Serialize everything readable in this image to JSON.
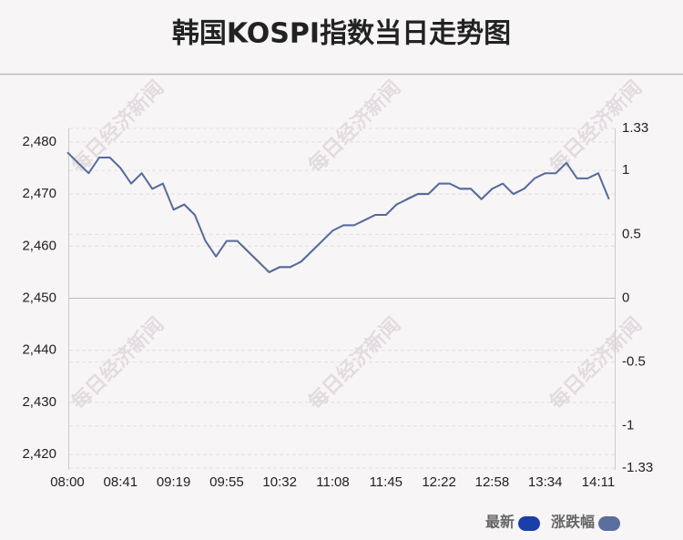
{
  "chart_data": {
    "type": "line",
    "title": "韩国KOSPI指数当日走势图",
    "watermark": "每日经济新闻",
    "x": [
      "08:00",
      null,
      null,
      null,
      null,
      "08:41",
      null,
      null,
      null,
      null,
      "09:19",
      null,
      null,
      null,
      null,
      "09:55",
      null,
      null,
      null,
      null,
      "10:32",
      null,
      null,
      null,
      null,
      "11:08",
      null,
      null,
      null,
      null,
      "11:45",
      null,
      null,
      null,
      null,
      "12:22",
      null,
      null,
      null,
      null,
      "12:58",
      null,
      null,
      null,
      null,
      "13:34",
      null,
      null,
      null,
      null,
      "14:11",
      null
    ],
    "series": [
      {
        "name": "最新",
        "color": "#1a3fa8",
        "line_color": "#4f6596",
        "values": [
          2478,
          2476,
          2474,
          2477,
          2477,
          2475,
          2472,
          2474,
          2471,
          2472,
          2467,
          2468,
          2466,
          2461,
          2458,
          2461,
          2461,
          2459,
          2457,
          2455,
          2456,
          2456,
          2457,
          2459,
          2461,
          2463,
          2464,
          2464,
          2465,
          2466,
          2466,
          2468,
          2469,
          2470,
          2470,
          2472,
          2472,
          2471,
          2471,
          2469,
          2471,
          2472,
          2470,
          2471,
          2473,
          2474,
          2474,
          2476,
          2473,
          2473,
          2474,
          2469
        ]
      },
      {
        "name": "涨跌幅",
        "color": "#5a6f9e",
        "axis": "y2",
        "values": [
          1.14,
          1.06,
          0.98,
          1.1,
          1.1,
          1.02,
          0.9,
          0.98,
          0.86,
          0.9,
          0.69,
          0.73,
          0.65,
          0.45,
          0.33,
          0.45,
          0.45,
          0.37,
          0.29,
          0.2,
          0.24,
          0.24,
          0.29,
          0.37,
          0.45,
          0.53,
          0.57,
          0.57,
          0.61,
          0.65,
          0.65,
          0.73,
          0.78,
          0.82,
          0.82,
          0.9,
          0.9,
          0.86,
          0.86,
          0.78,
          0.86,
          0.9,
          0.82,
          0.86,
          0.94,
          0.98,
          0.98,
          1.06,
          0.94,
          0.94,
          0.98,
          0.78
        ]
      }
    ],
    "ylim": [
      2417.4,
      2482.6
    ],
    "yticks": [
      {
        "value": 2420,
        "label": "2,420"
      },
      {
        "value": 2430,
        "label": "2,430"
      },
      {
        "value": 2440,
        "label": "2,440"
      },
      {
        "value": 2450,
        "label": "2,450"
      },
      {
        "value": 2460,
        "label": "2,460"
      },
      {
        "value": 2470,
        "label": "2,470"
      },
      {
        "value": 2480,
        "label": "2,480"
      }
    ],
    "y2lim": [
      -1.33,
      1.33
    ],
    "y2ticks": [
      -1.33,
      -1,
      -0.5,
      0,
      0.5,
      1,
      1.33
    ],
    "grid": true
  }
}
